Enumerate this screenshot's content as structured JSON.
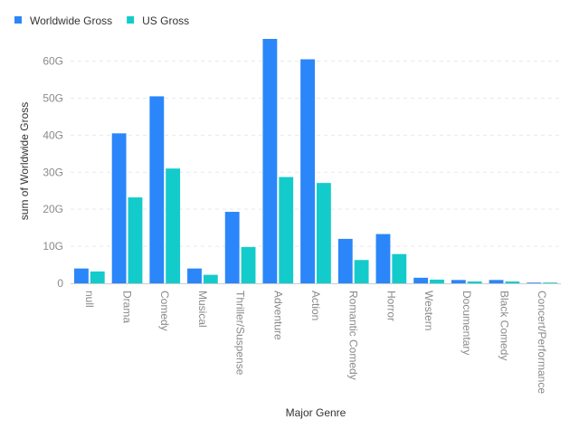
{
  "chart_data": {
    "type": "bar",
    "title": "",
    "xlabel": "Major Genre",
    "ylabel": "sum of Worldwide Gross",
    "categories": [
      "null",
      "Drama",
      "Comedy",
      "Musical",
      "Thriller/Suspense",
      "Adventure",
      "Action",
      "Romantic Comedy",
      "Horror",
      "Western",
      "Documentary",
      "Black Comedy",
      "Concert/Performance"
    ],
    "series": [
      {
        "name": "Worldwide Gross",
        "color": "#2b86f9",
        "values": [
          4.0,
          40.5,
          50.5,
          4.0,
          19.3,
          66.0,
          60.5,
          12.0,
          13.3,
          1.5,
          0.9,
          0.9,
          0.1
        ]
      },
      {
        "name": "US Gross",
        "color": "#14cbcb",
        "values": [
          3.2,
          23.2,
          31.0,
          2.3,
          9.8,
          28.7,
          27.1,
          6.3,
          7.9,
          1.0,
          0.5,
          0.5,
          0.1
        ]
      }
    ],
    "ylim": [
      0,
      66
    ],
    "yticks": [
      0,
      10,
      20,
      30,
      40,
      50,
      60
    ],
    "ytick_labels": [
      "0",
      "10G",
      "20G",
      "30G",
      "40G",
      "50G",
      "60G"
    ],
    "grid": true,
    "legend": "top-left"
  }
}
